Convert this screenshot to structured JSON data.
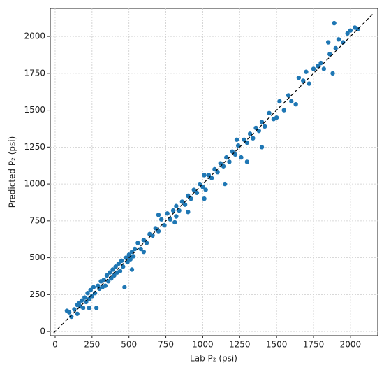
{
  "chart_data": {
    "type": "scatter",
    "x_label": "Lab P₂ (psi)",
    "y_label": "Predicted P₂ (psi)",
    "xlim": [
      -33,
      2185
    ],
    "ylim": [
      -28,
      2190
    ],
    "xticks": [
      0,
      250,
      500,
      750,
      1000,
      1250,
      1500,
      1750,
      2000
    ],
    "yticks": [
      0,
      250,
      500,
      750,
      1000,
      1250,
      1500,
      1750,
      2000
    ],
    "grid": true,
    "reference_line": {
      "x": [
        -10,
        2150
      ],
      "y": [
        -10,
        2150
      ],
      "color": "#000000",
      "dashed": true
    },
    "series": [
      {
        "color": "#1f77b4",
        "x": [
          80,
          95,
          110,
          130,
          150,
          160,
          170,
          180,
          190,
          200,
          210,
          220,
          230,
          240,
          250,
          260,
          270,
          280,
          290,
          300,
          310,
          320,
          330,
          340,
          350,
          360,
          370,
          380,
          390,
          400,
          410,
          420,
          430,
          440,
          450,
          460,
          470,
          480,
          490,
          500,
          510,
          520,
          530,
          540,
          560,
          580,
          600,
          620,
          640,
          660,
          680,
          700,
          720,
          740,
          760,
          780,
          800,
          810,
          820,
          840,
          860,
          880,
          900,
          900,
          920,
          940,
          960,
          980,
          1000,
          1010,
          1020,
          1040,
          1060,
          1080,
          1100,
          1120,
          1140,
          1160,
          1180,
          1200,
          1220,
          1230,
          1240,
          1260,
          1280,
          1300,
          1320,
          1340,
          1360,
          1380,
          1400,
          1420,
          1450,
          1480,
          1500,
          1520,
          1550,
          1580,
          1600,
          1630,
          1650,
          1680,
          1700,
          1720,
          1750,
          1780,
          1800,
          1820,
          1850,
          1880,
          1900,
          1920,
          1950,
          1980,
          2000,
          2030,
          2050,
          1890,
          1860,
          230,
          150,
          700,
          520,
          1300,
          1400,
          1150,
          600,
          1010,
          820
        ],
        "y": [
          140,
          130,
          100,
          150,
          120,
          190,
          170,
          210,
          160,
          230,
          200,
          260,
          220,
          280,
          240,
          300,
          260,
          160,
          310,
          290,
          340,
          300,
          350,
          310,
          380,
          340,
          400,
          360,
          420,
          380,
          440,
          400,
          460,
          410,
          480,
          440,
          300,
          500,
          470,
          520,
          490,
          540,
          510,
          560,
          600,
          560,
          620,
          600,
          660,
          650,
          700,
          680,
          760,
          720,
          800,
          760,
          820,
          740,
          850,
          820,
          880,
          860,
          920,
          810,
          900,
          960,
          940,
          1000,
          980,
          1060,
          960,
          1060,
          1040,
          1100,
          1080,
          1140,
          1120,
          1180,
          1150,
          1220,
          1200,
          1300,
          1260,
          1180,
          1300,
          1280,
          1340,
          1310,
          1380,
          1360,
          1420,
          1390,
          1480,
          1440,
          1450,
          1560,
          1500,
          1600,
          1560,
          1540,
          1720,
          1700,
          1760,
          1680,
          1780,
          1800,
          1820,
          1780,
          1960,
          1750,
          1920,
          1980,
          1960,
          2020,
          2040,
          2060,
          2050,
          2090,
          1880,
          160,
          180,
          790,
          420,
          1150,
          1250,
          1000,
          540,
          900,
          780
        ]
      }
    ]
  }
}
